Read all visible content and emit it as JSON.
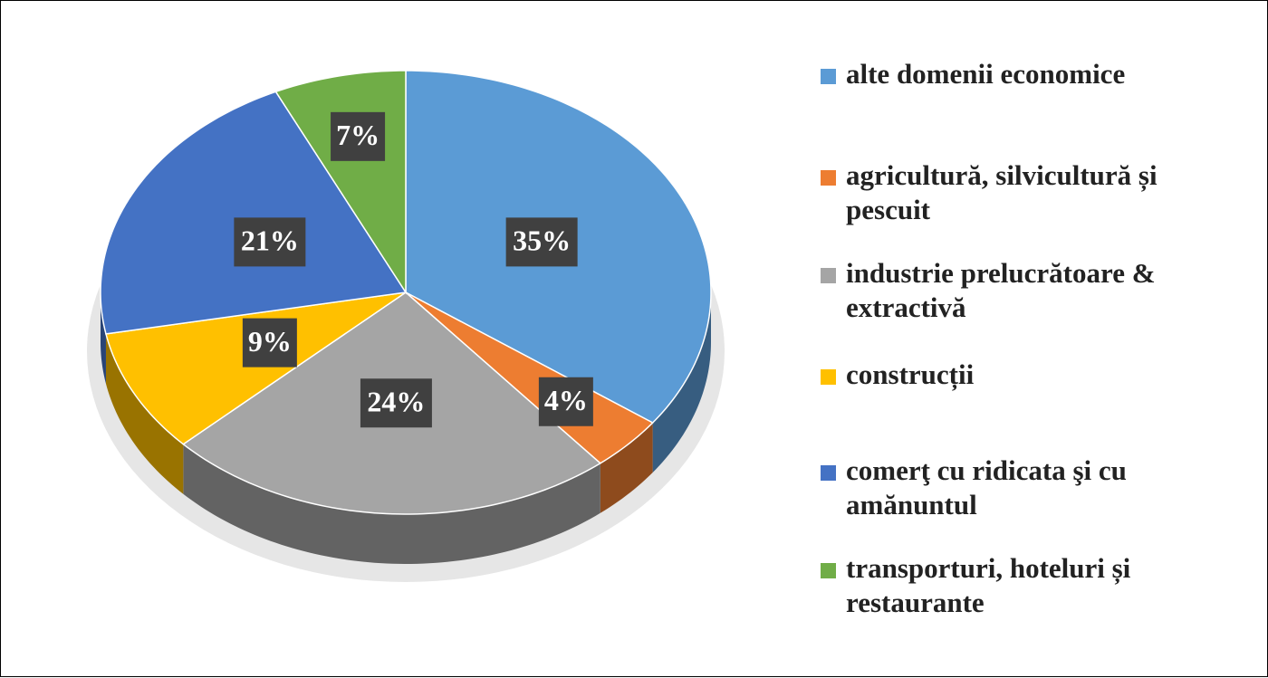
{
  "chart_data": {
    "type": "pie",
    "categories": [
      "alte domenii economice",
      "agricultură, silvicultură și pescuit",
      "industrie prelucrătoare & extractivă",
      "construcții",
      "comerţ cu ridicata şi cu amănuntul",
      "transporturi, hoteluri și restaurante"
    ],
    "values": [
      35,
      4,
      24,
      9,
      21,
      7
    ],
    "value_labels": [
      "35%",
      "4%",
      "24%",
      "9%",
      "21%",
      "7%"
    ],
    "colors": [
      "#5b9bd5",
      "#ed7d31",
      "#a5a5a5",
      "#ffc000",
      "#4472c4",
      "#70ad47"
    ],
    "legend_position": "right"
  }
}
